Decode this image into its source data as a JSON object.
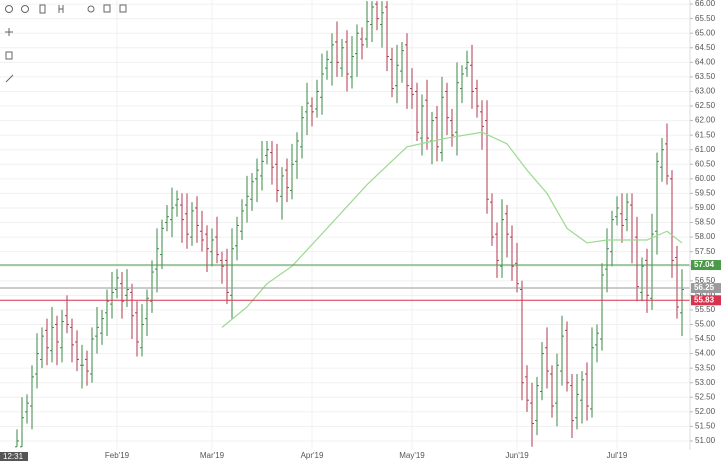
{
  "chart_data": {
    "type": "ohlc",
    "categories": [
      null,
      null,
      null,
      null,
      null,
      null,
      null,
      null,
      null,
      null,
      null,
      null,
      null,
      null,
      null,
      null,
      null,
      null,
      null,
      null,
      "Feb'19",
      null,
      null,
      null,
      null,
      null,
      null,
      null,
      null,
      null,
      null,
      null,
      null,
      null,
      null,
      null,
      null,
      null,
      null,
      "Mar'19",
      null,
      null,
      null,
      null,
      null,
      null,
      null,
      null,
      null,
      null,
      null,
      null,
      null,
      null,
      null,
      null,
      null,
      null,
      null,
      "Apr'19",
      null,
      null,
      null,
      null,
      null,
      null,
      null,
      null,
      null,
      null,
      null,
      null,
      null,
      null,
      null,
      null,
      null,
      null,
      null,
      "May'19",
      null,
      null,
      null,
      null,
      null,
      null,
      null,
      null,
      null,
      null,
      null,
      null,
      null,
      null,
      null,
      null,
      null,
      null,
      null,
      null,
      "Jun'19",
      null,
      null,
      null,
      null,
      null,
      null,
      null,
      null,
      null,
      null,
      null,
      null,
      null,
      null,
      null,
      null,
      null,
      null,
      null,
      "Jul'19",
      null,
      null,
      null,
      null,
      null,
      null,
      null,
      null,
      null,
      null,
      null,
      null,
      null
    ],
    "open": [
      50.8,
      50.8,
      52.0,
      52.2,
      53.3,
      53.8,
      54.8,
      54.1,
      55.0,
      54.2,
      55.3,
      54.9,
      54.4,
      53.6,
      53.8,
      53.3,
      54.6,
      54.7,
      55.4,
      55.7,
      56.2,
      56.4,
      56.0,
      56.1,
      55.4,
      54.2,
      55.2,
      55.8,
      56.9,
      57.4,
      58.5,
      58.6,
      59.1,
      59.1,
      58.8,
      58.0,
      59.0,
      58.2,
      58.1,
      57.5,
      58.0,
      57.2,
      57.2,
      56.0,
      57.7,
      58.2,
      59.1,
      59.3,
      60.0,
      60.1,
      60.8,
      60.9,
      60.5,
      59.4,
      60.3,
      59.6,
      60.6,
      61.1,
      62.3,
      62.5,
      62.4,
      62.8,
      63.8,
      64.0,
      64.7,
      63.8,
      64.7,
      63.5,
      64.3,
      64.8,
      64.8,
      65.3,
      66.0,
      65.3,
      65.9,
      64.1,
      63.2,
      63.7,
      64.6,
      63.1,
      63.0,
      61.4,
      62.7,
      61.3,
      62.1,
      60.9,
      63.0,
      62.0,
      61.6,
      63.1,
      63.8,
      63.9,
      63.1,
      62.3,
      62.0,
      59.2,
      58.1,
      57.0,
      58.8,
      58.0,
      57.1,
      56.2,
      53.2,
      52.3,
      51.7,
      52.7,
      54.2,
      53.3,
      52.3,
      53.4,
      54.8,
      52.9,
      51.8,
      52.4,
      53.3,
      52.1,
      54.3,
      54.5,
      56.9,
      57.5,
      58.7,
      58.8,
      58.6,
      59.1,
      58.0,
      56.1,
      57.2,
      55.9,
      58.2,
      60.4,
      61.2,
      60.0,
      57.3,
      55.4
    ],
    "high": [
      51.4,
      52.5,
      52.6,
      53.6,
      54.7,
      54.9,
      55.2,
      55.6,
      55.3,
      55.5,
      56.0,
      55.2,
      54.8,
      54.3,
      54.1,
      54.9,
      55.6,
      55.5,
      56.2,
      56.8,
      56.9,
      56.8,
      56.9,
      56.4,
      55.8,
      55.7,
      56.2,
      57.2,
      58.3,
      58.6,
      59.1,
      59.7,
      59.6,
      59.5,
      59.5,
      59.2,
      59.4,
      58.9,
      58.4,
      58.3,
      58.7,
      57.5,
      57.6,
      58.3,
      58.7,
      59.3,
      60.1,
      60.2,
      60.7,
      61.3,
      61.3,
      61.3,
      61.2,
      60.4,
      60.7,
      61.2,
      61.6,
      62.5,
      63.3,
      62.8,
      63.4,
      64.3,
      64.4,
      65.0,
      65.4,
      64.8,
      65.1,
      64.9,
      65.3,
      65.2,
      66.1,
      66.1,
      66.1,
      66.1,
      66.1,
      64.5,
      64.6,
      64.7,
      65.0,
      63.8,
      63.3,
      62.9,
      63.4,
      62.3,
      62.5,
      63.5,
      63.3,
      62.4,
      64.0,
      63.9,
      64.4,
      64.6,
      63.4,
      62.7,
      62.7,
      59.5,
      58.5,
      59.3,
      59.1,
      58.4,
      57.8,
      56.5,
      53.6,
      53.0,
      53.2,
      54.4,
      54.9,
      53.6,
      54.0,
      55.3,
      55.1,
      53.3,
      53.3,
      53.4,
      53.7,
      54.9,
      55.0,
      57.1,
      58.3,
      58.9,
      59.4,
      59.5,
      59.5,
      59.5,
      58.7,
      57.3,
      57.6,
      58.8,
      60.9,
      61.4,
      61.9,
      60.3,
      57.7,
      56.9
    ],
    "low": [
      50.8,
      50.8,
      51.6,
      51.4,
      52.8,
      53.5,
      53.6,
      53.7,
      53.6,
      53.7,
      54.7,
      53.7,
      53.4,
      52.8,
      52.9,
      53.0,
      54.0,
      54.3,
      54.6,
      55.2,
      55.9,
      55.2,
      55.6,
      54.5,
      53.9,
      53.9,
      54.6,
      55.4,
      56.1,
      56.9,
      58.2,
      58.0,
      58.7,
      57.8,
      57.6,
      57.7,
      57.8,
      57.5,
      56.8,
      57.0,
      57.1,
      56.4,
      55.7,
      55.2,
      57.2,
      57.9,
      58.5,
      58.9,
      59.2,
      59.6,
      60.5,
      59.8,
      59.2,
      58.6,
      59.2,
      59.3,
      60.0,
      60.7,
      61.5,
      61.8,
      62.1,
      62.2,
      63.4,
      63.2,
      63.5,
      63.5,
      63.0,
      63.1,
      63.5,
      64.1,
      64.5,
      64.7,
      65.1,
      64.5,
      63.7,
      62.8,
      62.6,
      63.3,
      62.4,
      62.4,
      61.3,
      60.8,
      61.0,
      60.5,
      60.6,
      60.6,
      61.5,
      61.1,
      60.8,
      62.6,
      63.5,
      62.4,
      62.1,
      61.0,
      58.8,
      57.7,
      56.6,
      56.6,
      57.3,
      56.5,
      56.1,
      52.4,
      52.0,
      50.8,
      51.2,
      52.4,
      52.8,
      51.8,
      51.5,
      52.9,
      52.7,
      51.1,
      51.4,
      51.6,
      51.7,
      51.8,
      53.7,
      54.1,
      56.1,
      57.0,
      58.4,
      57.8,
      58.2,
      57.1,
      55.8,
      55.8,
      55.4,
      55.5,
      57.4,
      59.9,
      59.8,
      56.6,
      55.2,
      54.6
    ],
    "close": [
      51.0,
      51.8,
      52.3,
      53.2,
      54.0,
      54.6,
      54.2,
      54.9,
      54.4,
      55.1,
      55.0,
      54.3,
      53.8,
      53.6,
      53.4,
      54.5,
      54.9,
      55.2,
      55.8,
      56.1,
      56.6,
      55.8,
      56.2,
      55.3,
      54.4,
      55.0,
      55.9,
      56.8,
      57.6,
      58.3,
      58.7,
      59.0,
      59.3,
      58.6,
      58.1,
      58.9,
      58.4,
      57.9,
      57.6,
      57.9,
      57.4,
      57.0,
      56.1,
      57.6,
      58.4,
      58.9,
      59.4,
      59.9,
      60.3,
      60.6,
      61.0,
      60.4,
      59.6,
      60.1,
      59.7,
      60.5,
      61.3,
      62.1,
      62.6,
      62.3,
      63.0,
      63.6,
      64.1,
      64.6,
      64.0,
      64.5,
      63.6,
      64.2,
      65.0,
      64.6,
      65.4,
      65.9,
      65.5,
      65.7,
      64.2,
      63.1,
      63.9,
      64.4,
      63.2,
      62.9,
      61.6,
      62.5,
      61.4,
      62.0,
      61.1,
      62.8,
      62.1,
      61.5,
      63.3,
      63.6,
      64.0,
      63.0,
      62.5,
      61.8,
      59.3,
      58.0,
      57.2,
      58.6,
      58.1,
      57.0,
      56.4,
      53.0,
      52.4,
      51.6,
      52.9,
      54.0,
      53.4,
      52.2,
      53.6,
      54.6,
      53.0,
      51.7,
      52.6,
      53.1,
      52.2,
      54.2,
      54.7,
      56.7,
      57.6,
      58.6,
      59.0,
      58.4,
      59.2,
      57.9,
      56.3,
      57.0,
      56.0,
      58.1,
      60.6,
      61.0,
      60.1,
      57.2,
      55.6,
      56.2
    ],
    "up_color": "#3a8a45",
    "down_color": "#b03a4e",
    "ylim": [
      50.69,
      66.14
    ],
    "yticks": [
      {
        "value": 51,
        "label": "51.00"
      },
      {
        "value": 51.5,
        "label": "51.50"
      },
      {
        "value": 52,
        "label": "52.00"
      },
      {
        "value": 52.5,
        "label": "52.50"
      },
      {
        "value": 53,
        "label": "53.00"
      },
      {
        "value": 53.5,
        "label": "53.50"
      },
      {
        "value": 54,
        "label": "54.00"
      },
      {
        "value": 54.5,
        "label": "54.50"
      },
      {
        "value": 55,
        "label": "55.00"
      },
      {
        "value": 55.5,
        "label": "55.50"
      },
      {
        "value": 56,
        "label": "56.00"
      },
      {
        "value": 56.5,
        "label": "56.50"
      },
      {
        "value": 57,
        "label": "57.00"
      },
      {
        "value": 57.5,
        "label": "57.50"
      },
      {
        "value": 58,
        "label": "58.00"
      },
      {
        "value": 58.5,
        "label": "58.50"
      },
      {
        "value": 59,
        "label": "59.00"
      },
      {
        "value": 59.5,
        "label": "59.50"
      },
      {
        "value": 60,
        "label": "60.00"
      },
      {
        "value": 60.5,
        "label": "60.50"
      },
      {
        "value": 61,
        "label": "61.00"
      },
      {
        "value": 61.5,
        "label": "61.50"
      },
      {
        "value": 62,
        "label": "62.00"
      },
      {
        "value": 62.5,
        "label": "62.50"
      },
      {
        "value": 63,
        "label": "63.00"
      },
      {
        "value": 63.5,
        "label": "63.50"
      },
      {
        "value": 64,
        "label": "64.00"
      },
      {
        "value": 64.5,
        "label": "64.50"
      },
      {
        "value": 65,
        "label": "65.00"
      },
      {
        "value": 65.5,
        "label": "65.50"
      },
      {
        "value": 66,
        "label": "66.00"
      }
    ],
    "grid": true,
    "moving_average": {
      "color": "#9bd98f",
      "x": [
        41,
        46,
        50,
        55,
        62,
        70,
        78,
        86,
        93,
        98,
        102,
        106,
        110,
        114,
        118,
        122,
        126,
        130,
        133
      ],
      "values": [
        54.9,
        55.6,
        56.4,
        57.0,
        58.3,
        59.8,
        61.1,
        61.4,
        61.6,
        61.2,
        60.3,
        59.5,
        58.3,
        57.8,
        57.9,
        57.9,
        57.9,
        58.2,
        57.8
      ]
    },
    "levels": [
      {
        "value": 57.04,
        "label": "57.04",
        "color": "#4a9a48"
      },
      {
        "value": 56.25,
        "label": "56.25",
        "color": "#9a9a9a"
      },
      {
        "value": 55.83,
        "label": "55.83",
        "color": "#d6334f"
      }
    ],
    "crosshair_label": "12:31"
  }
}
